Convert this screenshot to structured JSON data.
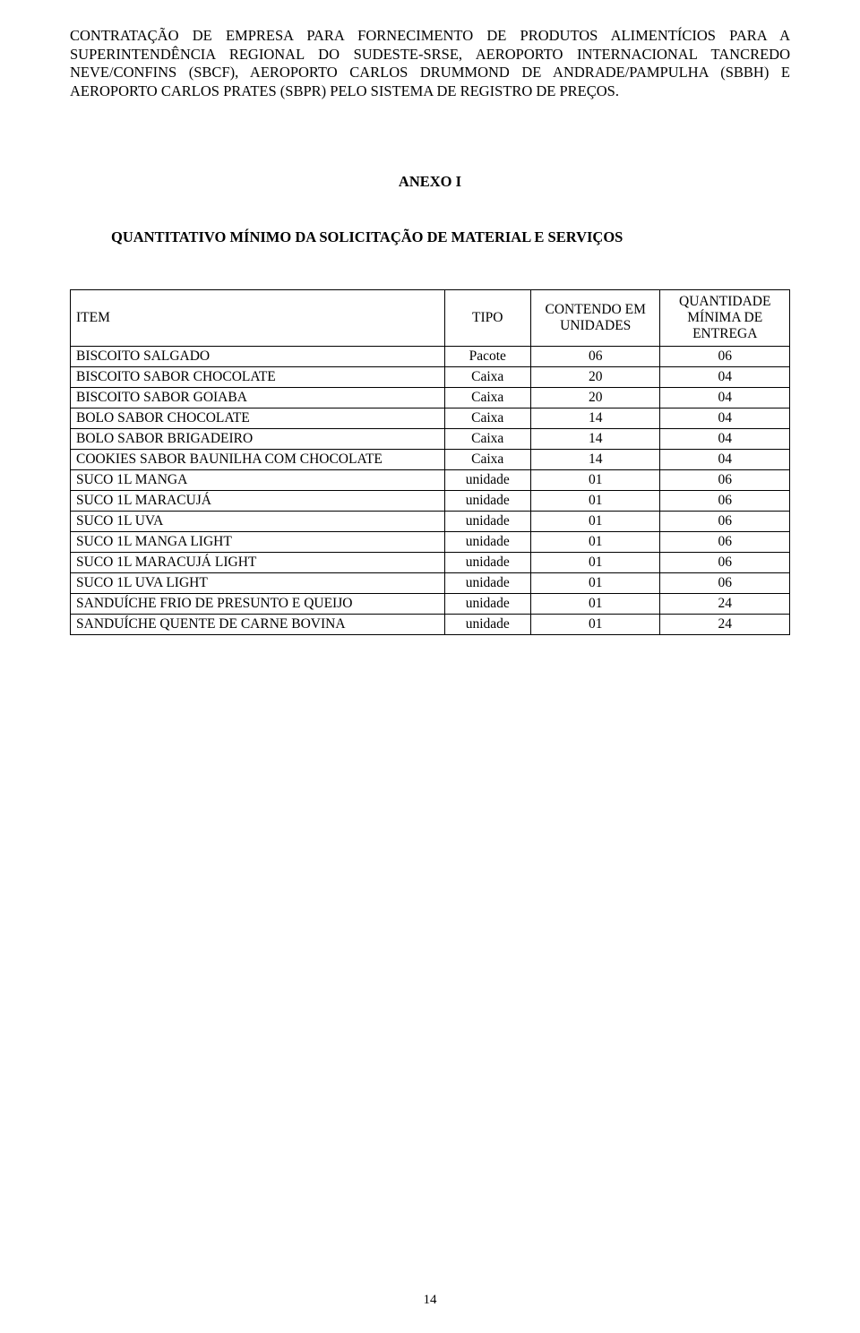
{
  "intro": "CONTRATAÇÃO DE EMPRESA PARA FORNECIMENTO DE PRODUTOS ALIMENTÍCIOS PARA A SUPERINTENDÊNCIA REGIONAL DO SUDESTE-SRSE, AEROPORTO INTERNACIONAL TANCREDO NEVE/CONFINS (SBCF), AEROPORTO CARLOS DRUMMOND DE ANDRADE/PAMPULHA (SBBH) E AEROPORTO CARLOS PRATES (SBPR) PELO SISTEMA DE REGISTRO DE PREÇOS.",
  "anexo_title": "ANEXO I",
  "subtitle": "QUANTITATIVO MÍNIMO DA SOLICITAÇÃO DE MATERIAL E SERVIÇOS",
  "headers": {
    "item": "ITEM",
    "tipo": "TIPO",
    "contendo": "CONTENDO EM UNIDADES",
    "quantidade": "QUANTIDADE MÍNIMA DE ENTREGA"
  },
  "rows": [
    {
      "item": "BISCOITO SALGADO",
      "tipo": "Pacote",
      "contendo": "06",
      "qtd": "06"
    },
    {
      "item": "BISCOITO SABOR CHOCOLATE",
      "tipo": "Caixa",
      "contendo": "20",
      "qtd": "04"
    },
    {
      "item": "BISCOITO SABOR GOIABA",
      "tipo": "Caixa",
      "contendo": "20",
      "qtd": "04"
    },
    {
      "item": "BOLO SABOR CHOCOLATE",
      "tipo": "Caixa",
      "contendo": "14",
      "qtd": "04"
    },
    {
      "item": "BOLO SABOR BRIGADEIRO",
      "tipo": "Caixa",
      "contendo": "14",
      "qtd": "04"
    },
    {
      "item": "COOKIES SABOR BAUNILHA COM CHOCOLATE",
      "tipo": "Caixa",
      "contendo": "14",
      "qtd": "04"
    },
    {
      "item": "SUCO 1L MANGA",
      "tipo": "unidade",
      "contendo": "01",
      "qtd": "06"
    },
    {
      "item": "SUCO 1L MARACUJÁ",
      "tipo": "unidade",
      "contendo": "01",
      "qtd": "06"
    },
    {
      "item": "SUCO 1L UVA",
      "tipo": "unidade",
      "contendo": "01",
      "qtd": "06"
    },
    {
      "item": "SUCO 1L MANGA LIGHT",
      "tipo": "unidade",
      "contendo": "01",
      "qtd": "06"
    },
    {
      "item": "SUCO 1L MARACUJÁ LIGHT",
      "tipo": "unidade",
      "contendo": "01",
      "qtd": "06"
    },
    {
      "item": "SUCO 1L UVA LIGHT",
      "tipo": "unidade",
      "contendo": "01",
      "qtd": "06"
    },
    {
      "item": "SANDUÍCHE FRIO DE PRESUNTO E QUEIJO",
      "tipo": "unidade",
      "contendo": "01",
      "qtd": "24"
    },
    {
      "item": "SANDUÍCHE QUENTE DE CARNE BOVINA",
      "tipo": "unidade",
      "contendo": "01",
      "qtd": "24"
    }
  ],
  "page_number": "14"
}
